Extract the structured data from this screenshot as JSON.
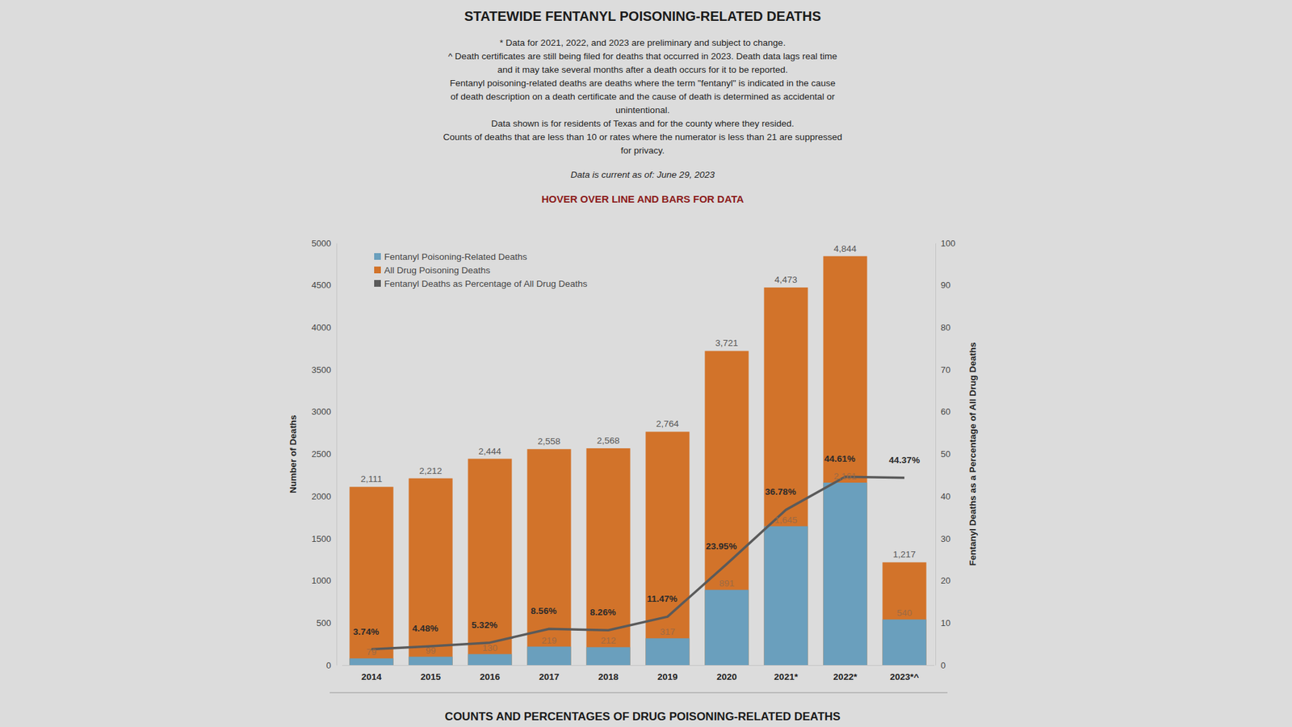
{
  "chart_data": {
    "type": "bar",
    "title": "STATEWIDE FENTANYL POISONING-RELATED DEATHS",
    "subtitle": [
      "* Data for 2021, 2022, and 2023 are preliminary and subject to change.",
      "^ Death certificates are still being filed for deaths that occurred in 2023. Death data lags real time",
      "and it may take several months after a death occurs for it to be reported.",
      "Fentanyl poisoning-related deaths are deaths where the term \"fentanyl\" is indicated in the cause",
      "of death description on a death certificate and the cause of death is determined as accidental or",
      "unintentional.",
      "Data shown is for residents of Texas and for the county where they resided.",
      "Counts of deaths that are less than 10 or rates where the numerator is less than 21 are suppressed",
      "for privacy."
    ],
    "annotations": [
      "Data is current as of: June 29, 2023",
      "HOVER OVER LINE AND BARS FOR DATA",
      "COUNTS AND PERCENTAGES OF DRUG POISONING-RELATED DEATHS"
    ],
    "categories": [
      "2014",
      "2015",
      "2016",
      "2017",
      "2018",
      "2019",
      "2020",
      "2021*",
      "2022*",
      "2023*^"
    ],
    "series": [
      {
        "name": "Fentanyl Poisoning-Related Deaths",
        "type": "bar",
        "color": "#6a9fbd",
        "values": [
          79,
          99,
          130,
          219,
          212,
          317,
          891,
          1645,
          2161,
          540
        ],
        "value_labels": [
          "79",
          "99",
          "130",
          "219",
          "212",
          "317",
          "891",
          "1,645",
          "2,161",
          "540"
        ]
      },
      {
        "name": "All Drug Poisoning Deaths",
        "type": "bar",
        "color": "#d2732a",
        "values": [
          2111,
          2212,
          2444,
          2558,
          2568,
          2764,
          3721,
          4473,
          4844,
          1217
        ],
        "value_labels": [
          "2,111",
          "2,212",
          "2,444",
          "2,558",
          "2,568",
          "2,764",
          "3,721",
          "4,473",
          "4,844",
          "1,217"
        ]
      },
      {
        "name": "Fentanyl Deaths as Percentage of All Drug Deaths",
        "type": "line",
        "axis": "y2",
        "color": "#5a5a5a",
        "values": [
          3.74,
          4.48,
          5.32,
          8.56,
          8.26,
          11.47,
          23.95,
          36.78,
          44.61,
          44.37
        ],
        "value_labels": [
          "3.74%",
          "4.48%",
          "5.32%",
          "8.56%",
          "8.26%",
          "11.47%",
          "23.95%",
          "36.78%",
          "44.61%",
          "44.37%"
        ]
      }
    ],
    "ylabel": "Number of Deaths",
    "y2label": "Fentanyl Deaths as a Percentage of All Drug Deaths",
    "ylim": [
      0,
      5000
    ],
    "yticks": [
      0,
      500,
      1000,
      1500,
      2000,
      2500,
      3000,
      3500,
      4000,
      4500,
      5000
    ],
    "y2lim": [
      0,
      100
    ],
    "y2ticks": [
      0,
      10,
      20,
      30,
      40,
      50,
      60,
      70,
      80,
      90,
      100
    ],
    "stacked": false,
    "grid": false,
    "data_labels": true,
    "legend": "upper left"
  }
}
